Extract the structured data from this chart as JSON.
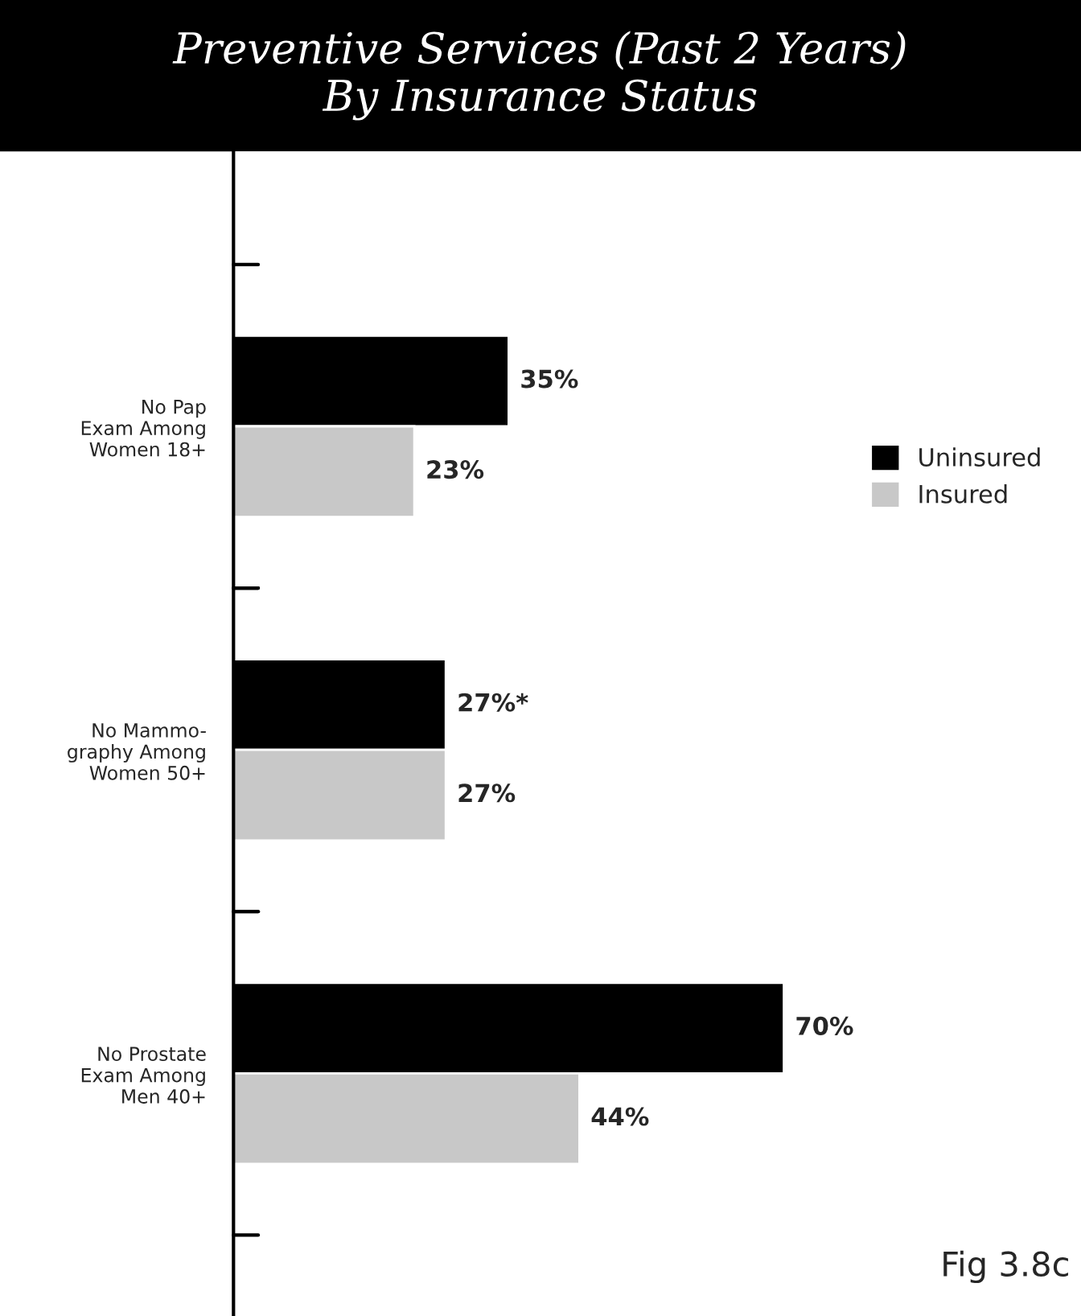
{
  "chart_data": {
    "type": "bar",
    "orientation": "horizontal",
    "title": "Preventive Services (Past 2 Years)\nBy Insurance Status",
    "categories": [
      "No Pap\nExam Among\nWomen 18+",
      "No Mammo-\ngraphy Among\nWomen 50+",
      "No Prostate\nExam Among\nMen 40+"
    ],
    "series": [
      {
        "name": "Uninsured",
        "color": "#000000",
        "values": [
          35,
          27,
          70
        ],
        "value_labels": [
          "35%",
          "27%*",
          "70%"
        ]
      },
      {
        "name": "Insured",
        "color": "#c8c8c8",
        "values": [
          23,
          27,
          44
        ],
        "value_labels": [
          "23%",
          "27%",
          "44%"
        ]
      }
    ],
    "legend": "right",
    "grid": false,
    "annotations": [
      "Fig 3.8c"
    ]
  }
}
